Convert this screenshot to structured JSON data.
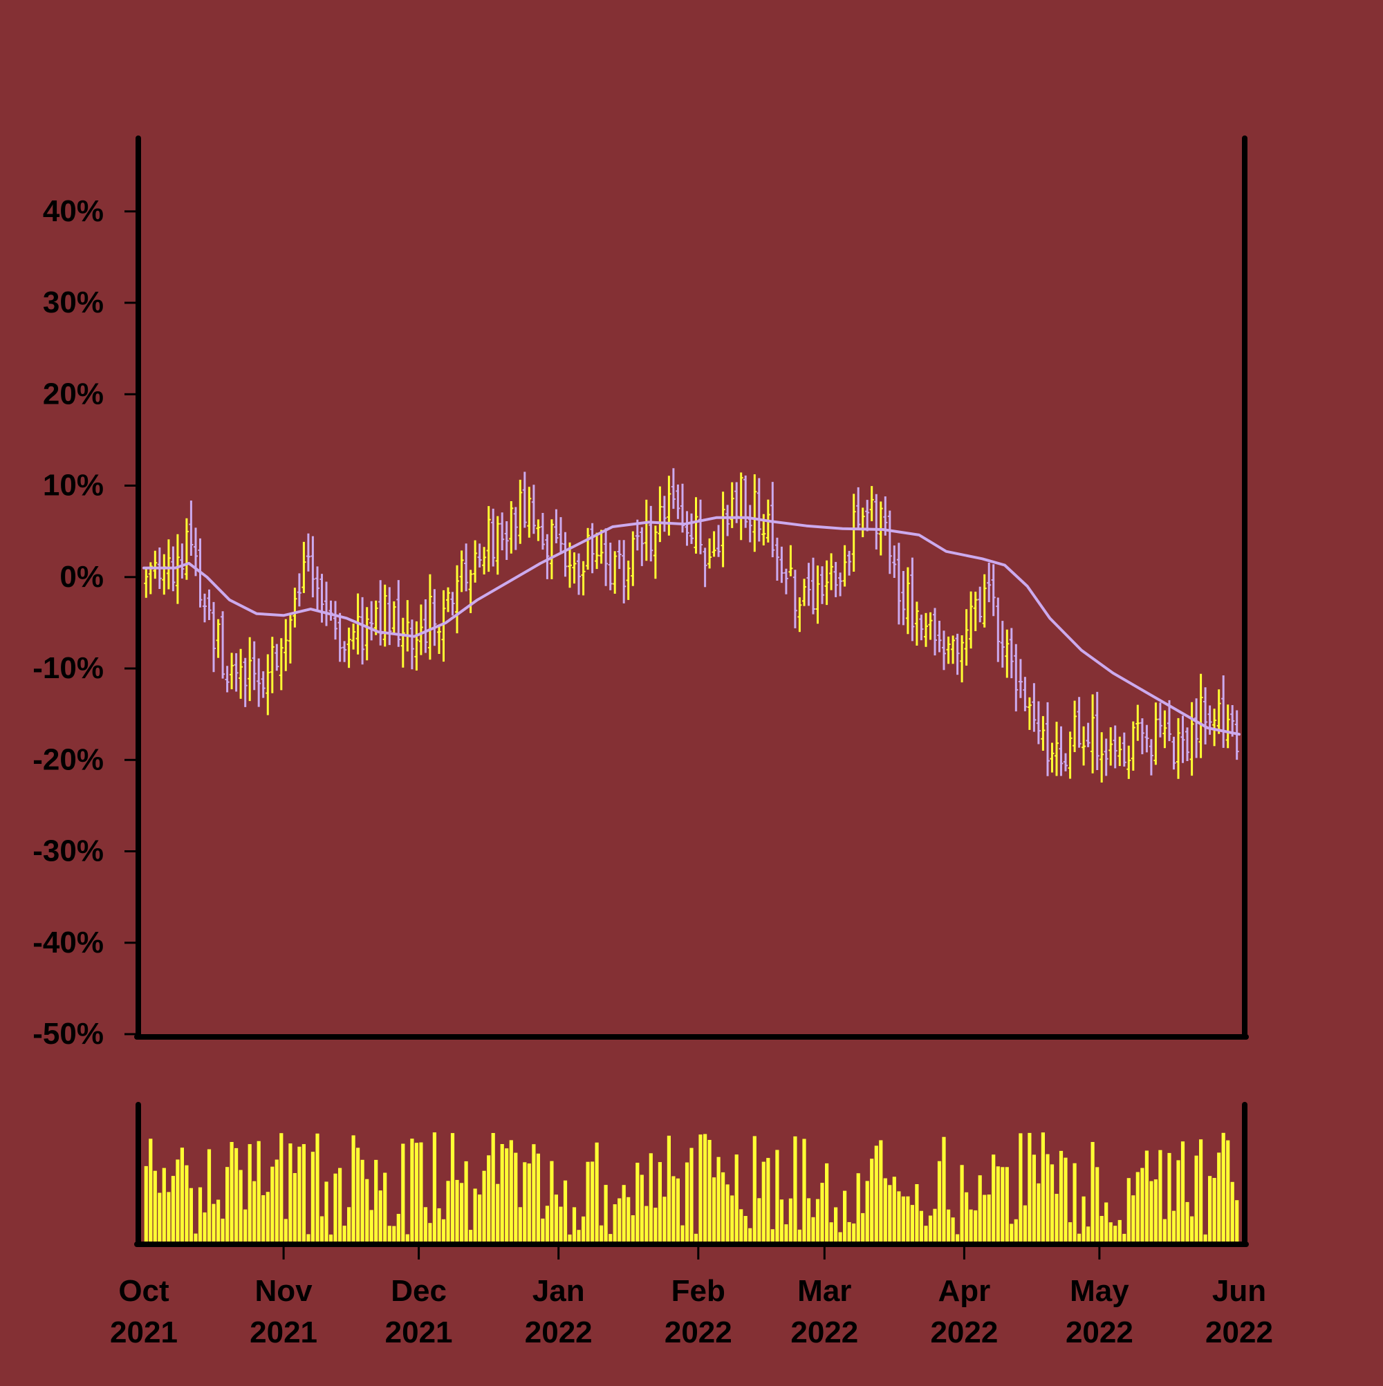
{
  "colors": {
    "background": "#843034",
    "up_bar": "#ffff33",
    "down_bar": "#ccaaee",
    "moving_average": "#ccaaee",
    "volume": "#ffff33",
    "axis": "#000000"
  },
  "chart_data": [
    {
      "type": "ohlc",
      "panel": "price",
      "y_unit": "percent",
      "ylim": [
        -50,
        48
      ],
      "y_ticks": [
        40,
        30,
        20,
        10,
        0,
        -10,
        -20,
        -30,
        -40,
        -50
      ],
      "y_tick_labels": [
        "40%",
        "30%",
        "20%",
        "10%",
        "0%",
        "-10%",
        "-20%",
        "-30%",
        "-40%",
        "-50%"
      ],
      "x_range": [
        "2021-10-01",
        "2022-06-01"
      ],
      "x_ticks": [
        "2021-10-01",
        "2021-11-01",
        "2021-12-01",
        "2022-01-01",
        "2022-02-01",
        "2022-03-01",
        "2022-04-01",
        "2022-05-01",
        "2022-06-01"
      ],
      "x_tick_labels": [
        [
          "Oct",
          "2021"
        ],
        [
          "Nov",
          "2021"
        ],
        [
          "Dec",
          "2021"
        ],
        [
          "Jan",
          "2022"
        ],
        [
          "Feb",
          "2022"
        ],
        [
          "Mar",
          "2022"
        ],
        [
          "Apr",
          "2022"
        ],
        [
          "May",
          "2022"
        ],
        [
          "Jun",
          "2022"
        ]
      ],
      "grid": false,
      "legend": "none",
      "price_path": {
        "x": [
          "2021-10-01",
          "2021-10-08",
          "2021-10-12",
          "2021-10-15",
          "2021-10-20",
          "2021-10-26",
          "2021-10-31",
          "2021-11-03",
          "2021-11-07",
          "2021-11-12",
          "2021-11-18",
          "2021-11-24",
          "2021-11-30",
          "2021-12-05",
          "2021-12-10",
          "2021-12-15",
          "2021-12-20",
          "2021-12-24",
          "2022-01-02",
          "2022-01-08",
          "2022-01-14",
          "2022-01-20",
          "2022-01-25",
          "2022-01-30",
          "2022-02-04",
          "2022-02-08",
          "2022-02-12",
          "2022-02-16",
          "2022-02-21",
          "2022-02-26",
          "2022-03-02",
          "2022-03-06",
          "2022-03-09",
          "2022-03-13",
          "2022-03-18",
          "2022-03-23",
          "2022-03-29",
          "2022-04-02",
          "2022-04-06",
          "2022-04-10",
          "2022-04-15",
          "2022-04-21",
          "2022-04-27",
          "2022-05-03",
          "2022-05-09",
          "2022-05-15",
          "2022-05-20",
          "2022-05-24",
          "2022-05-28",
          "2022-06-01"
        ],
        "y": [
          0,
          2,
          3,
          -4,
          -10,
          -11,
          -8,
          -5,
          2,
          -5,
          -7,
          -4,
          -6,
          -4,
          0,
          3,
          6,
          7,
          3,
          2,
          0,
          4,
          8,
          5,
          3,
          9,
          8,
          6,
          -1,
          -2,
          0,
          3,
          8,
          6,
          -2,
          -4,
          -8,
          -4,
          -2,
          -8,
          -15,
          -19,
          -17,
          -19,
          -18,
          -18,
          -20,
          -15,
          -14,
          -18
        ]
      },
      "moving_average": {
        "x": [
          "2021-10-01",
          "2021-10-08",
          "2021-10-11",
          "2021-10-15",
          "2021-10-20",
          "2021-10-26",
          "2021-11-01",
          "2021-11-07",
          "2021-11-15",
          "2021-11-22",
          "2021-11-30",
          "2021-12-07",
          "2021-12-14",
          "2021-12-21",
          "2021-12-28",
          "2022-01-05",
          "2022-01-13",
          "2022-01-21",
          "2022-01-29",
          "2022-02-05",
          "2022-02-12",
          "2022-02-17",
          "2022-02-25",
          "2022-03-05",
          "2022-03-14",
          "2022-03-22",
          "2022-03-28",
          "2022-04-05",
          "2022-04-10",
          "2022-04-15",
          "2022-04-20",
          "2022-04-27",
          "2022-05-04",
          "2022-05-11",
          "2022-05-18",
          "2022-05-25",
          "2022-06-01"
        ],
        "y": [
          1,
          1,
          1.5,
          0,
          -2.5,
          -4,
          -4.2,
          -3.5,
          -4.5,
          -6,
          -6.5,
          -5,
          -2.5,
          -0.5,
          1.5,
          3.5,
          5.5,
          6,
          5.8,
          6.5,
          6.5,
          6.1,
          5.6,
          5.3,
          5.2,
          4.6,
          2.8,
          2,
          1.3,
          -1,
          -4.5,
          -8,
          -10.5,
          -12.5,
          -14.5,
          -16.5,
          -17.2
        ]
      }
    },
    {
      "type": "bar",
      "panel": "volume",
      "x_range": [
        "2021-10-01",
        "2022-06-01"
      ],
      "bar_color": "#ffff33",
      "y_axis_labels": "none"
    }
  ]
}
